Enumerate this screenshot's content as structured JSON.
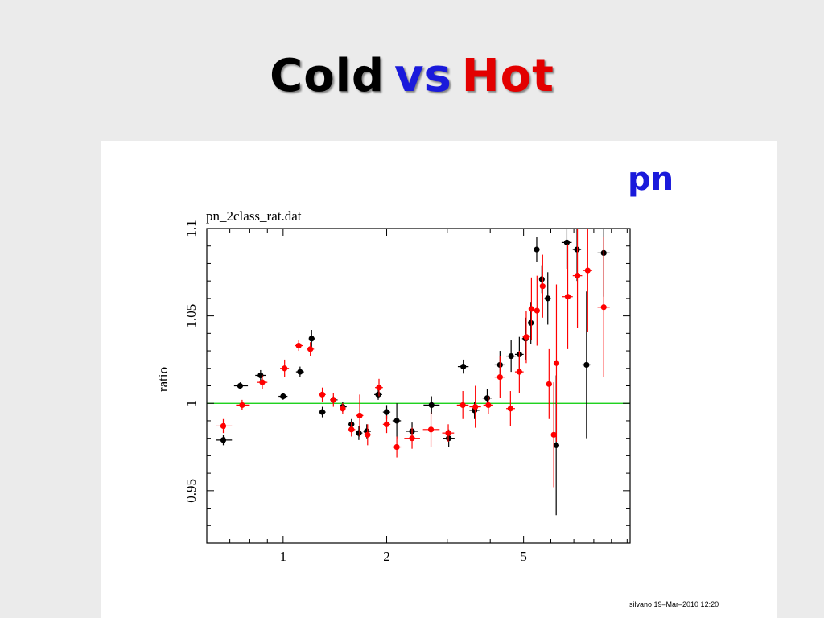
{
  "slide": {
    "title_parts": [
      {
        "text": "Cold",
        "color": "#000000"
      },
      {
        "text": "vs",
        "color": "#1a1adb"
      },
      {
        "text": "Hot",
        "color": "#e30000"
      }
    ],
    "detector_label": "pn",
    "detector_label_color": "#1a1adb",
    "footer_stamp": "silvano 19–Mar–2010 12:20"
  },
  "chart_data": {
    "type": "scatter",
    "title": "pn_2class_rat.dat",
    "xlabel": "",
    "ylabel": "ratio",
    "xscale": "log",
    "xlim": [
      0.6,
      10.2
    ],
    "ylim": [
      0.92,
      1.1
    ],
    "xticks": [
      1,
      2,
      5
    ],
    "xtick_labels": [
      "1",
      "2",
      "5"
    ],
    "yticks": [
      0.95,
      1,
      1.05,
      1.1
    ],
    "ytick_labels": [
      "0.95",
      "1",
      "1.05",
      "1.1"
    ],
    "reference_line": {
      "y": 1.0,
      "color": "#00cc00"
    },
    "series": [
      {
        "color": "#000000",
        "points": [
          {
            "x": 0.67,
            "y": 0.979,
            "xerr": [
              0.64,
              0.71
            ],
            "yerr": 0.003
          },
          {
            "x": 0.75,
            "y": 1.01,
            "xerr": [
              0.72,
              0.79
            ],
            "yerr": 0.002
          },
          {
            "x": 0.86,
            "y": 1.016,
            "xerr": [
              0.83,
              0.89
            ],
            "yerr": 0.003
          },
          {
            "x": 1.0,
            "y": 1.004,
            "xerr": [
              0.97,
              1.03
            ],
            "yerr": 0.002
          },
          {
            "x": 1.12,
            "y": 1.018,
            "xerr": [
              1.09,
              1.15
            ],
            "yerr": 0.003
          },
          {
            "x": 1.21,
            "y": 1.037,
            "xerr": [
              1.19,
              1.24
            ],
            "yerr": 0.005
          },
          {
            "x": 1.3,
            "y": 0.995,
            "xerr": [
              1.27,
              1.33
            ],
            "yerr": 0.003
          },
          {
            "x": 1.4,
            "y": 1.002,
            "xerr": [
              1.37,
              1.44
            ],
            "yerr": 0.002
          },
          {
            "x": 1.49,
            "y": 0.998,
            "xerr": [
              1.46,
              1.53
            ],
            "yerr": 0.003
          },
          {
            "x": 1.58,
            "y": 0.988,
            "xerr": [
              1.54,
              1.61
            ],
            "yerr": 0.003
          },
          {
            "x": 1.66,
            "y": 0.983,
            "xerr": [
              1.63,
              1.7
            ],
            "yerr": 0.004
          },
          {
            "x": 1.75,
            "y": 0.984,
            "xerr": [
              1.71,
              1.8
            ],
            "yerr": 0.004
          },
          {
            "x": 1.89,
            "y": 1.005,
            "xerr": [
              1.84,
              1.94
            ],
            "yerr": 0.003
          },
          {
            "x": 2.0,
            "y": 0.995,
            "xerr": [
              1.95,
              2.05
            ],
            "yerr": 0.004
          },
          {
            "x": 2.14,
            "y": 0.99,
            "xerr": [
              2.08,
              2.2
            ],
            "yerr": 0.01
          },
          {
            "x": 2.37,
            "y": 0.984,
            "xerr": [
              2.28,
              2.46
            ],
            "yerr": 0.005
          },
          {
            "x": 2.7,
            "y": 0.999,
            "xerr": [
              2.56,
              2.85
            ],
            "yerr": 0.005
          },
          {
            "x": 3.03,
            "y": 0.98,
            "xerr": [
              2.92,
              3.15
            ],
            "yerr": 0.005
          },
          {
            "x": 3.34,
            "y": 1.021,
            "xerr": [
              3.22,
              3.46
            ],
            "yerr": 0.004
          },
          {
            "x": 3.6,
            "y": 0.996,
            "xerr": [
              3.48,
              3.72
            ],
            "yerr": 0.005
          },
          {
            "x": 3.92,
            "y": 1.003,
            "xerr": [
              3.8,
              4.05
            ],
            "yerr": 0.005
          },
          {
            "x": 4.27,
            "y": 1.022,
            "xerr": [
              4.12,
              4.42
            ],
            "yerr": 0.008
          },
          {
            "x": 4.6,
            "y": 1.027,
            "xerr": [
              4.45,
              4.75
            ],
            "yerr": 0.009
          },
          {
            "x": 4.86,
            "y": 1.028,
            "xerr": [
              4.72,
              5.0
            ],
            "yerr": 0.01
          },
          {
            "x": 5.07,
            "y": 1.037,
            "xerr": [
              4.95,
              5.2
            ],
            "yerr": 0.012
          },
          {
            "x": 5.25,
            "y": 1.046,
            "xerr": [
              5.15,
              5.35
            ],
            "yerr": 0.012
          },
          {
            "x": 5.46,
            "y": 1.088,
            "xerr": [
              5.36,
              5.56
            ],
            "yerr": 0.007
          },
          {
            "x": 5.65,
            "y": 1.071,
            "xerr": [
              5.55,
              5.75
            ],
            "yerr": 0.008
          },
          {
            "x": 5.88,
            "y": 1.06,
            "xerr": [
              5.75,
              6.0
            ],
            "yerr": 0.015
          },
          {
            "x": 6.22,
            "y": 0.976,
            "xerr": [
              6.1,
              6.35
            ],
            "yerr": 0.04
          },
          {
            "x": 6.68,
            "y": 1.092,
            "xerr": [
              6.45,
              6.9
            ],
            "yerr": 0.015
          },
          {
            "x": 7.15,
            "y": 1.088,
            "xerr": [
              6.95,
              7.35
            ],
            "yerr": 0.018
          },
          {
            "x": 7.62,
            "y": 1.022,
            "xerr": [
              7.4,
              7.85
            ],
            "yerr": 0.042
          },
          {
            "x": 8.55,
            "y": 1.086,
            "xerr": [
              8.2,
              8.9
            ],
            "yerr": 0.025
          }
        ]
      },
      {
        "color": "#ff0000",
        "points": [
          {
            "x": 0.67,
            "y": 0.987,
            "xerr": [
              0.64,
              0.71
            ],
            "yerr": 0.004
          },
          {
            "x": 0.76,
            "y": 0.999,
            "xerr": [
              0.73,
              0.8
            ],
            "yerr": 0.003
          },
          {
            "x": 0.87,
            "y": 1.012,
            "xerr": [
              0.84,
              0.9
            ],
            "yerr": 0.004
          },
          {
            "x": 1.01,
            "y": 1.02,
            "xerr": [
              0.98,
              1.04
            ],
            "yerr": 0.005
          },
          {
            "x": 1.11,
            "y": 1.033,
            "xerr": [
              1.08,
              1.14
            ],
            "yerr": 0.003
          },
          {
            "x": 1.2,
            "y": 1.031,
            "xerr": [
              1.17,
              1.23
            ],
            "yerr": 0.004
          },
          {
            "x": 1.3,
            "y": 1.005,
            "xerr": [
              1.27,
              1.33
            ],
            "yerr": 0.004
          },
          {
            "x": 1.4,
            "y": 1.002,
            "xerr": [
              1.37,
              1.43
            ],
            "yerr": 0.004
          },
          {
            "x": 1.49,
            "y": 0.997,
            "xerr": [
              1.46,
              1.52
            ],
            "yerr": 0.003
          },
          {
            "x": 1.58,
            "y": 0.985,
            "xerr": [
              1.54,
              1.62
            ],
            "yerr": 0.004
          },
          {
            "x": 1.67,
            "y": 0.993,
            "xerr": [
              1.63,
              1.71
            ],
            "yerr": 0.012
          },
          {
            "x": 1.76,
            "y": 0.982,
            "xerr": [
              1.72,
              1.8
            ],
            "yerr": 0.006
          },
          {
            "x": 1.9,
            "y": 1.009,
            "xerr": [
              1.85,
              1.95
            ],
            "yerr": 0.005
          },
          {
            "x": 2.0,
            "y": 0.988,
            "xerr": [
              1.95,
              2.05
            ],
            "yerr": 0.005
          },
          {
            "x": 2.14,
            "y": 0.975,
            "xerr": [
              2.08,
              2.2
            ],
            "yerr": 0.006
          },
          {
            "x": 2.37,
            "y": 0.98,
            "xerr": [
              2.25,
              2.5
            ],
            "yerr": 0.006
          },
          {
            "x": 2.69,
            "y": 0.985,
            "xerr": [
              2.55,
              2.85
            ],
            "yerr": 0.01
          },
          {
            "x": 3.02,
            "y": 0.983,
            "xerr": [
              2.9,
              3.14
            ],
            "yerr": 0.005
          },
          {
            "x": 3.33,
            "y": 0.999,
            "xerr": [
              3.2,
              3.46
            ],
            "yerr": 0.008
          },
          {
            "x": 3.62,
            "y": 0.998,
            "xerr": [
              3.48,
              3.76
            ],
            "yerr": 0.012
          },
          {
            "x": 3.95,
            "y": 0.999,
            "xerr": [
              3.82,
              4.08
            ],
            "yerr": 0.005
          },
          {
            "x": 4.27,
            "y": 1.015,
            "xerr": [
              4.12,
              4.42
            ],
            "yerr": 0.012
          },
          {
            "x": 4.58,
            "y": 0.997,
            "xerr": [
              4.45,
              4.72
            ],
            "yerr": 0.01
          },
          {
            "x": 4.86,
            "y": 1.018,
            "xerr": [
              4.72,
              5.0
            ],
            "yerr": 0.012
          },
          {
            "x": 5.09,
            "y": 1.038,
            "xerr": [
              4.97,
              5.22
            ],
            "yerr": 0.015
          },
          {
            "x": 5.27,
            "y": 1.054,
            "xerr": [
              5.17,
              5.38
            ],
            "yerr": 0.018
          },
          {
            "x": 5.47,
            "y": 1.053,
            "xerr": [
              5.37,
              5.58
            ],
            "yerr": 0.02
          },
          {
            "x": 5.68,
            "y": 1.067,
            "xerr": [
              5.58,
              5.78
            ],
            "yerr": 0.018
          },
          {
            "x": 5.93,
            "y": 1.011,
            "xerr": [
              5.82,
              6.04
            ],
            "yerr": 0.02
          },
          {
            "x": 6.12,
            "y": 0.982,
            "xerr": [
              6.02,
              6.22
            ],
            "yerr": 0.03
          },
          {
            "x": 6.23,
            "y": 1.023,
            "xerr": [
              6.13,
              6.33
            ],
            "yerr": 0.045
          },
          {
            "x": 6.72,
            "y": 1.061,
            "xerr": [
              6.48,
              6.95
            ],
            "yerr": 0.03
          },
          {
            "x": 7.17,
            "y": 1.073,
            "xerr": [
              6.95,
              7.4
            ],
            "yerr": 0.03
          },
          {
            "x": 7.68,
            "y": 1.076,
            "xerr": [
              7.45,
              7.92
            ],
            "yerr": 0.035
          },
          {
            "x": 8.55,
            "y": 1.055,
            "xerr": [
              8.2,
              8.9
            ],
            "yerr": 0.04
          }
        ]
      }
    ]
  }
}
